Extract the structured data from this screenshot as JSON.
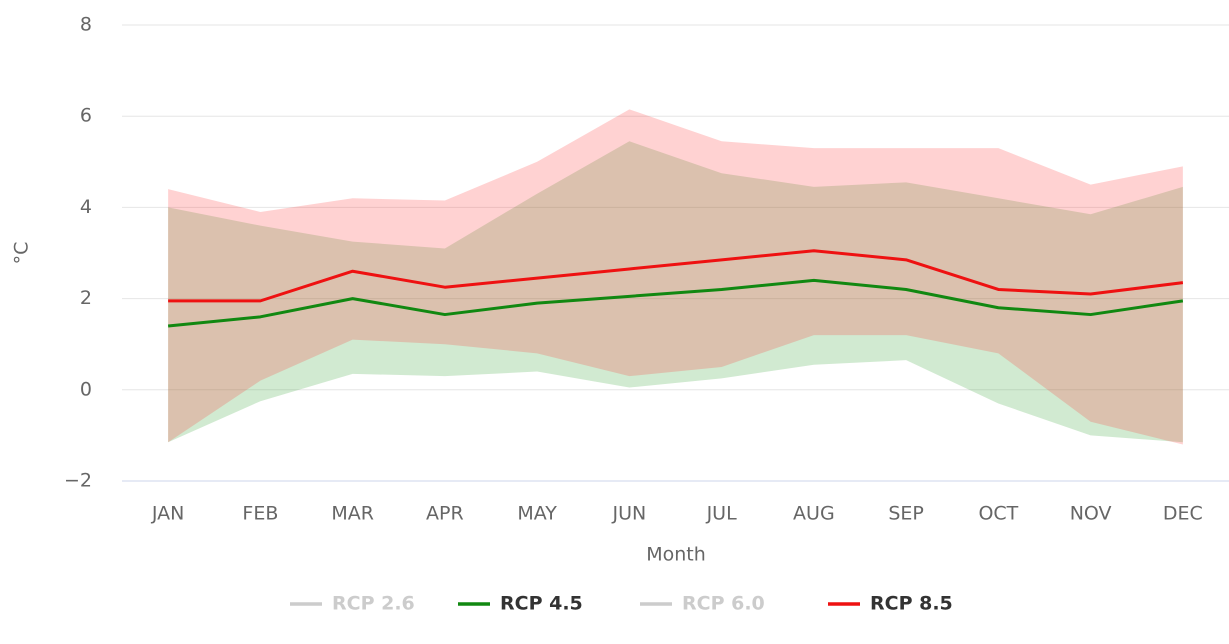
{
  "chart_data": {
    "type": "line",
    "y_label": "°C",
    "x_label": "Month",
    "categories": [
      "JAN",
      "FEB",
      "MAR",
      "APR",
      "MAY",
      "JUN",
      "JUL",
      "AUG",
      "SEP",
      "OCT",
      "NOV",
      "DEC"
    ],
    "ylim": [
      -2,
      8
    ],
    "yticks": [
      {
        "value": -2,
        "label": "−2"
      },
      0,
      2,
      4,
      6,
      8
    ],
    "grid": true,
    "legend": "bottom",
    "series": [
      {
        "name": "RCP 2.6",
        "color": "#cccccc",
        "visible": false,
        "values": [
          null,
          null,
          null,
          null,
          null,
          null,
          null,
          null,
          null,
          null,
          null,
          null
        ]
      },
      {
        "name": "RCP 4.5",
        "color": "#118811",
        "visible": true,
        "band_color": "#2e9e2e",
        "values": [
          1.4,
          1.6,
          2.0,
          1.65,
          1.9,
          2.05,
          2.2,
          2.4,
          2.2,
          1.8,
          1.65,
          1.95
        ],
        "range_high": [
          4.0,
          3.6,
          3.25,
          3.1,
          4.3,
          5.45,
          4.75,
          4.45,
          4.55,
          4.2,
          3.85,
          4.45
        ],
        "range_low": [
          -1.15,
          -0.25,
          0.35,
          0.3,
          0.4,
          0.05,
          0.25,
          0.55,
          0.65,
          -0.3,
          -1.0,
          -1.15
        ]
      },
      {
        "name": "RCP 6.0",
        "color": "#cccccc",
        "visible": false,
        "values": [
          null,
          null,
          null,
          null,
          null,
          null,
          null,
          null,
          null,
          null,
          null,
          null
        ]
      },
      {
        "name": "RCP 8.5",
        "color": "#ee1111",
        "visible": true,
        "band_color": "#ff3333",
        "values": [
          1.95,
          1.95,
          2.6,
          2.25,
          2.45,
          2.65,
          2.85,
          3.05,
          2.85,
          2.2,
          2.1,
          2.35
        ],
        "range_high": [
          4.4,
          3.9,
          4.2,
          4.15,
          5.0,
          6.15,
          5.45,
          5.3,
          5.3,
          5.3,
          4.5,
          4.9
        ],
        "range_low": [
          -1.15,
          0.2,
          1.1,
          1.0,
          0.8,
          0.3,
          0.5,
          1.2,
          1.2,
          0.8,
          -0.7,
          -1.2
        ]
      }
    ]
  }
}
